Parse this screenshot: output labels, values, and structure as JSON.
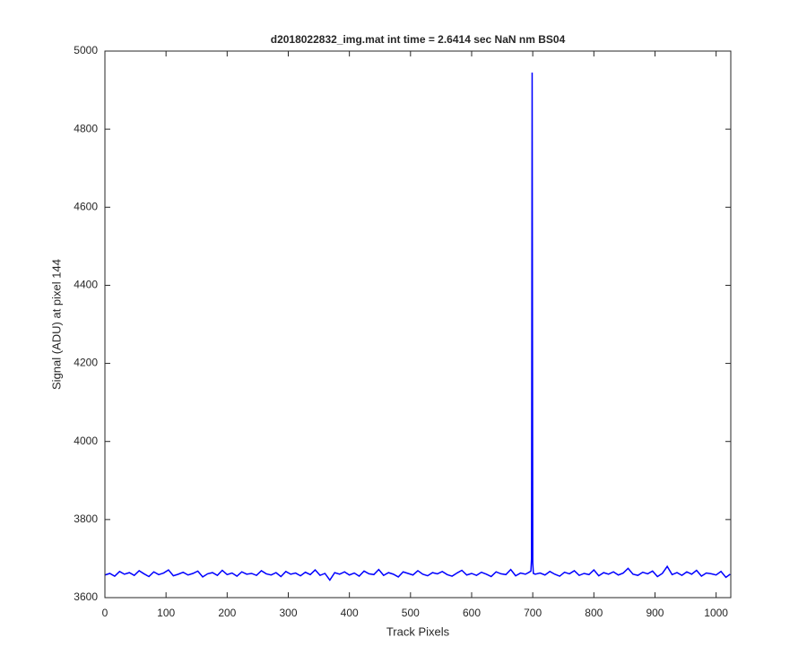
{
  "chart_data": {
    "type": "line",
    "title": "d2018022832_img.mat int time = 2.6414 sec  NaN nm BS04",
    "x_label": "Track Pixels",
    "y_label": "Signal (ADU) at pixel 144",
    "xlim": [
      0,
      1024
    ],
    "ylim": [
      3600,
      5000
    ],
    "xticks": [
      0,
      100,
      200,
      300,
      400,
      500,
      600,
      700,
      800,
      900,
      1000
    ],
    "yticks": [
      3600,
      3800,
      4000,
      4200,
      4400,
      4600,
      4800,
      5000
    ],
    "x": [
      0,
      8,
      16,
      24,
      32,
      40,
      48,
      56,
      64,
      72,
      80,
      88,
      96,
      104,
      112,
      120,
      128,
      136,
      144,
      152,
      160,
      168,
      176,
      184,
      192,
      200,
      208,
      216,
      224,
      232,
      240,
      248,
      256,
      264,
      272,
      280,
      288,
      296,
      304,
      312,
      320,
      328,
      336,
      344,
      352,
      360,
      368,
      376,
      384,
      392,
      400,
      408,
      416,
      424,
      432,
      440,
      448,
      456,
      464,
      472,
      480,
      488,
      496,
      504,
      512,
      520,
      528,
      536,
      544,
      552,
      560,
      568,
      576,
      584,
      592,
      600,
      608,
      616,
      624,
      632,
      640,
      648,
      656,
      664,
      672,
      680,
      688,
      694,
      697,
      698,
      699,
      700,
      701,
      704,
      712,
      720,
      728,
      736,
      744,
      752,
      760,
      768,
      776,
      784,
      792,
      800,
      808,
      816,
      824,
      832,
      840,
      848,
      856,
      864,
      872,
      880,
      888,
      896,
      904,
      912,
      920,
      928,
      936,
      944,
      952,
      960,
      968,
      976,
      984,
      992,
      1000,
      1008,
      1016,
      1023
    ],
    "series": [
      {
        "name": "signal",
        "color": "#0000ff",
        "values": [
          3658,
          3662,
          3655,
          3667,
          3660,
          3664,
          3657,
          3669,
          3661,
          3654,
          3666,
          3659,
          3663,
          3671,
          3656,
          3660,
          3665,
          3658,
          3662,
          3668,
          3653,
          3661,
          3664,
          3657,
          3670,
          3659,
          3663,
          3655,
          3666,
          3660,
          3662,
          3657,
          3669,
          3661,
          3658,
          3664,
          3654,
          3667,
          3660,
          3663,
          3656,
          3665,
          3659,
          3671,
          3657,
          3662,
          3645,
          3664,
          3660,
          3666,
          3658,
          3663,
          3655,
          3668,
          3661,
          3659,
          3672,
          3657,
          3664,
          3660,
          3653,
          3666,
          3662,
          3658,
          3669,
          3660,
          3656,
          3664,
          3661,
          3667,
          3659,
          3655,
          3663,
          3670,
          3658,
          3662,
          3657,
          3665,
          3660,
          3654,
          3666,
          3661,
          3659,
          3672,
          3656,
          3663,
          3660,
          3665,
          3668,
          3700,
          4945,
          3690,
          3662,
          3660,
          3663,
          3658,
          3667,
          3660,
          3655,
          3665,
          3661,
          3669,
          3657,
          3662,
          3659,
          3671,
          3656,
          3664,
          3660,
          3666,
          3658,
          3663,
          3675,
          3660,
          3657,
          3665,
          3661,
          3668,
          3654,
          3662,
          3680,
          3659,
          3664,
          3657,
          3666,
          3660,
          3670,
          3655,
          3663,
          3661,
          3658,
          3667,
          3652,
          3660
        ]
      }
    ]
  }
}
